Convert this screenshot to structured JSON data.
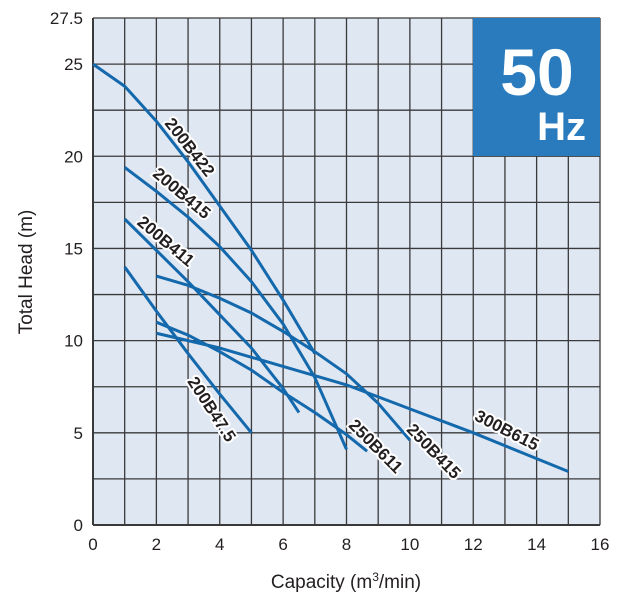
{
  "chart_data": {
    "type": "line",
    "title": "",
    "badge": {
      "value": "50",
      "unit": "Hz",
      "color": "#2a7bbd"
    },
    "xlabel": "Capacity (m",
    "xlabel_sup": "3",
    "xlabel_end": "/min)",
    "ylabel": "Total Head (m)",
    "xlim": [
      0,
      16
    ],
    "ylim": [
      0,
      27.5
    ],
    "xticks": [
      "0",
      "2",
      "4",
      "6",
      "8",
      "10",
      "12",
      "14",
      "16"
    ],
    "yticks": [
      "0",
      "5",
      "10",
      "15",
      "20",
      "25",
      "27.5"
    ],
    "grid": true,
    "colors": {
      "line": "#1468ac",
      "plot_bg": "#dfe7f3",
      "grid": "#3a3a3a"
    },
    "series": [
      {
        "name": "200B422",
        "x": [
          0,
          1,
          2,
          3,
          4,
          5,
          6,
          7
        ],
        "y": [
          25,
          23.8,
          21.9,
          19.7,
          17.3,
          14.9,
          12.2,
          9.3
        ]
      },
      {
        "name": "200B415",
        "x": [
          1,
          2,
          3,
          4,
          5,
          6,
          7,
          8
        ],
        "y": [
          19.4,
          18.1,
          16.7,
          15.1,
          13.2,
          10.9,
          8.0,
          4.1
        ]
      },
      {
        "name": "200B411",
        "x": [
          1,
          2,
          3,
          4,
          5,
          6,
          6.5
        ],
        "y": [
          16.6,
          14.9,
          13.2,
          11.4,
          9.6,
          7.4,
          6.1
        ]
      },
      {
        "name": "200B47.5",
        "x": [
          1,
          2,
          3,
          4,
          5
        ],
        "y": [
          14.0,
          11.6,
          9.3,
          7.1,
          5.0
        ]
      },
      {
        "name": "250B611",
        "x": [
          2,
          3,
          4,
          5,
          6,
          7,
          8,
          8.65
        ],
        "y": [
          11.0,
          10.3,
          9.4,
          8.4,
          7.2,
          6.1,
          4.9,
          4.0
        ]
      },
      {
        "name": "250B415",
        "x": [
          2,
          3,
          4,
          5,
          6,
          7,
          8,
          9,
          10
        ],
        "y": [
          13.5,
          13.0,
          12.3,
          11.5,
          10.5,
          9.4,
          8.2,
          6.6,
          4.6
        ]
      },
      {
        "name": "300B615",
        "x": [
          2,
          4,
          6,
          8,
          10,
          12,
          14,
          15
        ],
        "y": [
          10.4,
          9.6,
          8.6,
          7.6,
          6.3,
          5.0,
          3.6,
          2.9
        ]
      }
    ]
  }
}
